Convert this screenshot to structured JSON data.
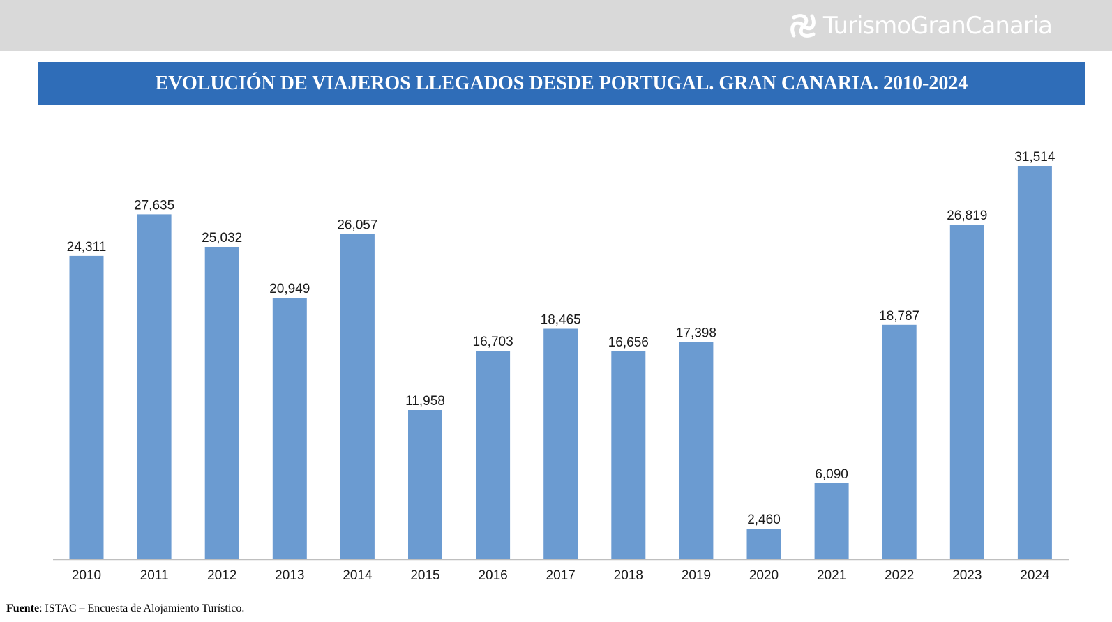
{
  "header": {
    "brand": "TurismoGranCanaria",
    "brand_icon": "turismo-gran-canaria-logo-icon"
  },
  "title": "EVOLUCIÓN DE VIAJEROS LLEGADOS DESDE PORTUGAL. GRAN CANARIA. 2010-2024",
  "chart_data": {
    "type": "bar",
    "title": "EVOLUCIÓN DE VIAJEROS LLEGADOS DESDE PORTUGAL. GRAN CANARIA. 2010-2024",
    "categories": [
      "2010",
      "2011",
      "2012",
      "2013",
      "2014",
      "2015",
      "2016",
      "2017",
      "2018",
      "2019",
      "2020",
      "2021",
      "2022",
      "2023",
      "2024"
    ],
    "values": [
      24311,
      27635,
      25032,
      20949,
      26057,
      11958,
      16703,
      18465,
      16656,
      17398,
      2460,
      6090,
      18787,
      26819,
      31514
    ],
    "value_labels": [
      "24,311",
      "27,635",
      "25,032",
      "20,949",
      "26,057",
      "11,958",
      "16,703",
      "18,465",
      "16,656",
      "17,398",
      "2,460",
      "6,090",
      "18,787",
      "26,819",
      "31,514"
    ],
    "xlabel": "",
    "ylabel": "",
    "ylim": [
      0,
      31514
    ],
    "grid": false,
    "legend": "none",
    "bar_color": "#6b9bd1",
    "axis_color": "#bfbfbf"
  },
  "colors": {
    "title_band": "#2f6db8",
    "header_bar": "#d9d9d9"
  },
  "source": {
    "label": "Fuente",
    "text": ": ISTAC – Encuesta de Alojamiento Turístico."
  }
}
